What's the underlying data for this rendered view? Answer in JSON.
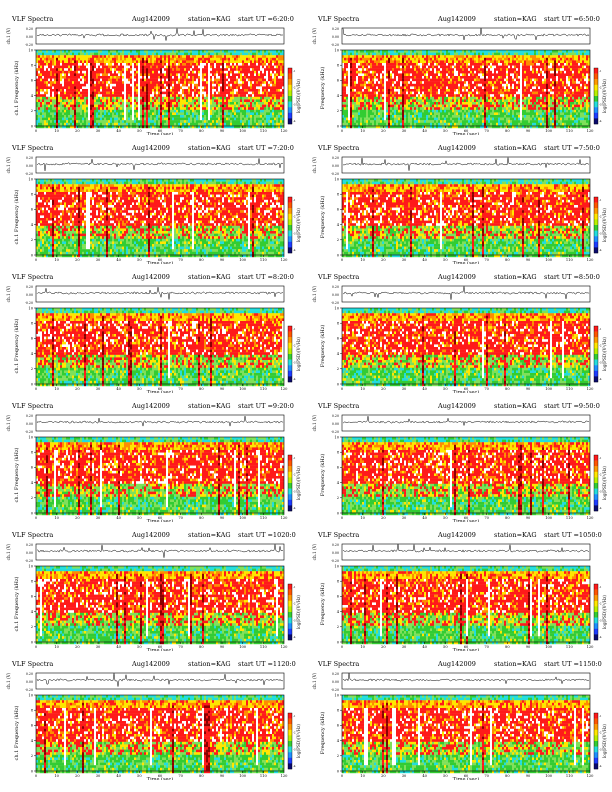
{
  "page": {
    "header_left": "VLF Spectra",
    "date": "Aug142009",
    "station": "station=KAG",
    "start_label": "start UT =",
    "x_axis_label": "Time (sec)",
    "x_ticks": [
      "0",
      "10",
      "20",
      "30",
      "40",
      "50",
      "60",
      "70",
      "80",
      "90",
      "100",
      "110",
      "120"
    ],
    "y_freq_ticks": [
      "0",
      "2",
      "4",
      "6",
      "8",
      "10"
    ],
    "wave_axis_label": "ch.1 (V)",
    "freq_axis_label": "ch.1 Frequency (kHz)",
    "freq_axis_label_right": "Frequency (kHz)",
    "colorbar_label": "log(PSD)(V²/Hz)",
    "colorbar_ticks": [
      "-1",
      "-2",
      "-3",
      "-4"
    ]
  },
  "chart_data": [
    {
      "type": "heatmap",
      "title": "VLF Spectra  Aug142009  station=KAG  start UT =6:20:0",
      "start_ut": "6:20:0",
      "xlabel": "Time (sec)",
      "ylabel": "Frequency (kHz)",
      "xlim": [
        0,
        120
      ],
      "ylim": [
        0,
        10
      ],
      "colorbar": "log(PSD)(V²/Hz)",
      "wave_ylim": [
        -0.2,
        0.2
      ]
    },
    {
      "type": "heatmap",
      "title": "VLF Spectra  Aug142009  station=KAG  start UT =6:50:0",
      "start_ut": "6:50:0",
      "xlabel": "Time (sec)",
      "ylabel": "Frequency (kHz)",
      "xlim": [
        0,
        120
      ],
      "ylim": [
        0,
        10
      ],
      "colorbar": "log(PSD)(V²/Hz)",
      "wave_ylim": [
        -0.2,
        0.2
      ]
    },
    {
      "type": "heatmap",
      "title": "VLF Spectra  Aug142009  station=KAG  start UT =7:20:0",
      "start_ut": "7:20:0",
      "xlabel": "Time (sec)",
      "ylabel": "Frequency (kHz)",
      "xlim": [
        0,
        120
      ],
      "ylim": [
        0,
        10
      ],
      "colorbar": "log(PSD)(V²/Hz)",
      "wave_ylim": [
        -0.2,
        0.2
      ]
    },
    {
      "type": "heatmap",
      "title": "VLF Spectra  Aug142009  station=KAG  start UT =7:50:0",
      "start_ut": "7:50:0",
      "xlabel": "Time (sec)",
      "ylabel": "Frequency (kHz)",
      "xlim": [
        0,
        120
      ],
      "ylim": [
        0,
        10
      ],
      "colorbar": "log(PSD)(V²/Hz)",
      "wave_ylim": [
        -0.2,
        0.2
      ]
    },
    {
      "type": "heatmap",
      "title": "VLF Spectra  Aug142009  station=KAG  start UT =8:20:0",
      "start_ut": "8:20:0",
      "xlabel": "Time (sec)",
      "ylabel": "Frequency (kHz)",
      "xlim": [
        0,
        120
      ],
      "ylim": [
        0,
        10
      ],
      "colorbar": "log(PSD)(V²/Hz)",
      "wave_ylim": [
        -0.2,
        0.2
      ]
    },
    {
      "type": "heatmap",
      "title": "VLF Spectra  Aug142009  station=KAG  start UT =8:50:0",
      "start_ut": "8:50:0",
      "xlabel": "Time (sec)",
      "ylabel": "Frequency (kHz)",
      "xlim": [
        0,
        120
      ],
      "ylim": [
        0,
        10
      ],
      "colorbar": "log(PSD)(V²/Hz)",
      "wave_ylim": [
        -0.2,
        0.2
      ]
    },
    {
      "type": "heatmap",
      "title": "VLF Spectra  Aug142009  station=KAG  start UT =9:20:0",
      "start_ut": "9:20:0",
      "xlabel": "Time (sec)",
      "ylabel": "Frequency (kHz)",
      "xlim": [
        0,
        120
      ],
      "ylim": [
        0,
        10
      ],
      "colorbar": "log(PSD)(V²/Hz)",
      "wave_ylim": [
        -0.2,
        0.2
      ]
    },
    {
      "type": "heatmap",
      "title": "VLF Spectra  Aug142009  station=KAG  start UT =9:50:0",
      "start_ut": "9:50:0",
      "xlabel": "Time (sec)",
      "ylabel": "Frequency (kHz)",
      "xlim": [
        0,
        120
      ],
      "ylim": [
        0,
        10
      ],
      "colorbar": "log(PSD)(V²/Hz)",
      "wave_ylim": [
        -0.2,
        0.2
      ]
    },
    {
      "type": "heatmap",
      "title": "VLF Spectra  Aug142009  station=KAG  start UT =1020:0",
      "start_ut": "1020:0",
      "xlabel": "Time (sec)",
      "ylabel": "Frequency (kHz)",
      "xlim": [
        0,
        120
      ],
      "ylim": [
        0,
        10
      ],
      "colorbar": "log(PSD)(V²/Hz)",
      "wave_ylim": [
        -0.2,
        0.2
      ]
    },
    {
      "type": "heatmap",
      "title": "VLF Spectra  Aug142009  station=KAG  start UT =1050:0",
      "start_ut": "1050:0",
      "xlabel": "Time (sec)",
      "ylabel": "Frequency (kHz)",
      "xlim": [
        0,
        120
      ],
      "ylim": [
        0,
        10
      ],
      "colorbar": "log(PSD)(V²/Hz)",
      "wave_ylim": [
        -0.2,
        0.2
      ]
    },
    {
      "type": "heatmap",
      "title": "VLF Spectra  Aug142009  station=KAG  start UT =1120:0",
      "start_ut": "1120:0",
      "xlabel": "Time (sec)",
      "ylabel": "Frequency (kHz)",
      "xlim": [
        0,
        120
      ],
      "ylim": [
        0,
        10
      ],
      "colorbar": "log(PSD)(V²/Hz)",
      "wave_ylim": [
        -0.2,
        0.2
      ]
    },
    {
      "type": "heatmap",
      "title": "VLF Spectra  Aug142009  station=KAG  start UT =1150:0",
      "start_ut": "1150:0",
      "xlabel": "Time (sec)",
      "ylabel": "Frequency (kHz)",
      "xlim": [
        0,
        120
      ],
      "ylim": [
        0,
        10
      ],
      "colorbar": "log(PSD)(V²/Hz)",
      "wave_ylim": [
        -0.2,
        0.2
      ]
    }
  ],
  "colors": {
    "white": "#ffffff",
    "red": "#ff1a1a",
    "orange": "#ff8c00",
    "yellow": "#ffe600",
    "green": "#33cc33",
    "lightgreen": "#7fe05a",
    "cyan": "#22dddd",
    "blue": "#1e3cff",
    "navy": "#0a0a6e"
  }
}
